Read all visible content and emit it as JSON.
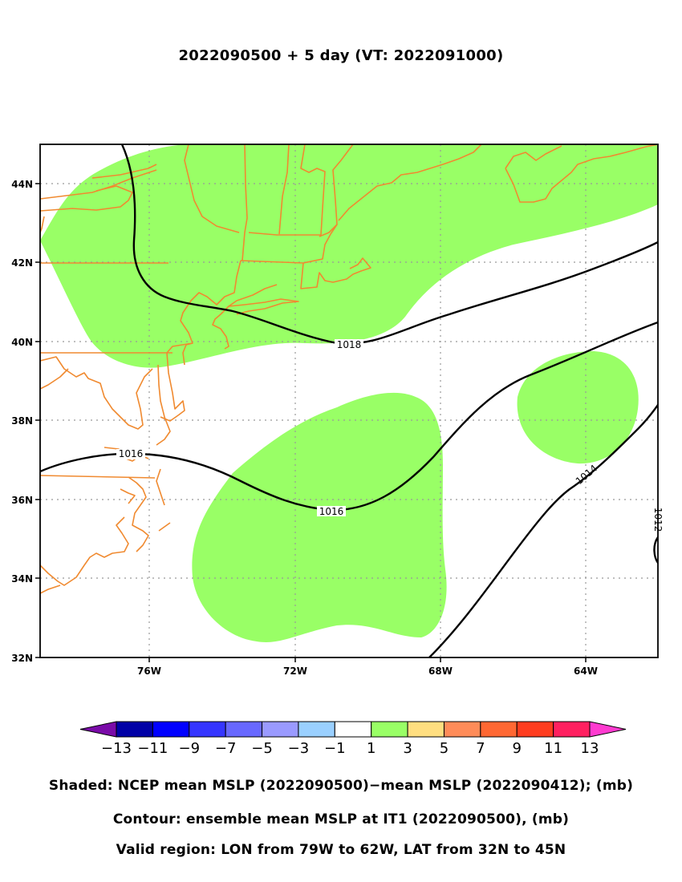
{
  "title": "2022090500 + 5 day (VT: 2022091000)",
  "map": {
    "lon_range": [
      -79,
      -62
    ],
    "lat_range": [
      32,
      45
    ],
    "x_ticks": [
      "76W",
      "72W",
      "68W",
      "64W"
    ],
    "y_ticks": [
      "32N",
      "34N",
      "36N",
      "38N",
      "40N",
      "42N",
      "44N"
    ],
    "grid": "dotted",
    "coastline_color": "#f08a30",
    "contour_color": "#000000",
    "contour_labels": [
      "1018",
      "1016",
      "1016",
      "1014",
      "1012"
    ]
  },
  "chart_data": {
    "type": "map",
    "shaded_field": "NCEP mean MSLP difference (mb)",
    "contour_levels": [
      1012,
      1014,
      1016,
      1018
    ],
    "shaded_category_shown": "1 to 3"
  },
  "colorbar": {
    "labels": [
      "−13",
      "−11",
      "−9",
      "−7",
      "−5",
      "−3",
      "−1",
      "1",
      "3",
      "5",
      "7",
      "9",
      "11",
      "13"
    ],
    "colors": [
      "#7a0ba8",
      "#0000a6",
      "#0000ff",
      "#3535ff",
      "#6868ff",
      "#9a9aff",
      "#9ad0ff",
      "#ffffff",
      "#99ff66",
      "#ffde80",
      "#ff8c59",
      "#ff6833",
      "#ff3d1f",
      "#ff2060",
      "#ff3bd0"
    ]
  },
  "captions": {
    "shaded": "Shaded: NCEP mean MSLP (2022090500)−mean MSLP (2022090412); (mb)",
    "contour": "Contour: ensemble mean MSLP at IT1 (2022090500), (mb)",
    "region": "Valid region: LON from 79W to 62W, LAT from 32N to 45N"
  }
}
